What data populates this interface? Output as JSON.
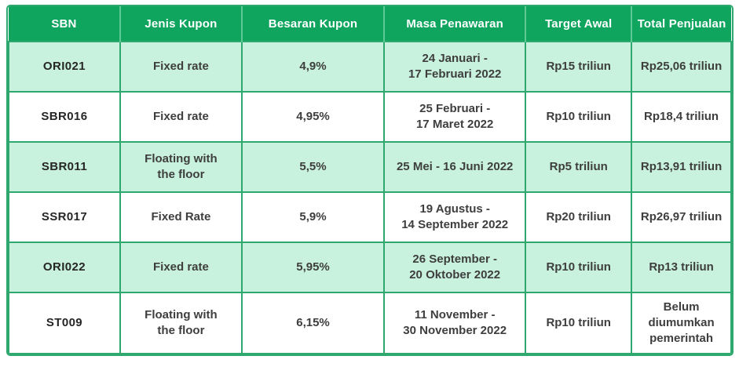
{
  "chart_data": {
    "type": "table",
    "columns": [
      "SBN",
      "Jenis Kupon",
      "Besaran Kupon",
      "Masa Penawaran",
      "Target Awal",
      "Total Penjualan"
    ],
    "rows": [
      [
        "ORI021",
        "Fixed rate",
        "4,9%",
        "24 Januari -\n17 Februari 2022",
        "Rp15 triliun",
        "Rp25,06 triliun"
      ],
      [
        "SBR016",
        "Fixed rate",
        "4,95%",
        "25 Februari -\n17 Maret 2022",
        "Rp10 triliun",
        "Rp18,4 triliun"
      ],
      [
        "SBR011",
        "Floating with\nthe floor",
        "5,5%",
        "25 Mei - 16 Juni 2022",
        "Rp5 triliun",
        "Rp13,91 triliun"
      ],
      [
        "SSR017",
        "Fixed Rate",
        "5,9%",
        "19 Agustus -\n14 September 2022",
        "Rp20 triliun",
        "Rp26,97 triliun"
      ],
      [
        "ORI022",
        "Fixed rate",
        "5,95%",
        "26 September -\n20 Oktober 2022",
        "Rp10 triliun",
        "Rp13 triliun"
      ],
      [
        "ST009",
        "Floating with\nthe floor",
        "6,15%",
        "11 November -\n30 November 2022",
        "Rp10 triliun",
        "Belum\ndiumumkan\npemerintah"
      ]
    ]
  },
  "colors": {
    "header_bg": "#0fa55f",
    "header_text": "#ffffff",
    "header_divider": "#5ec894",
    "grid_border": "#2fa870",
    "row_mint": "#c8f2dd",
    "row_white": "#ffffff",
    "body_text": "#3e3e3e"
  }
}
